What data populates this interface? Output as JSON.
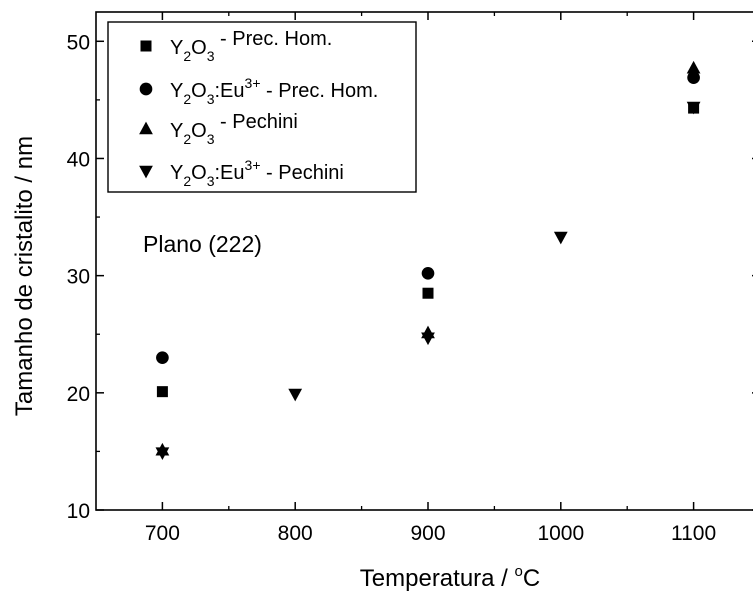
{
  "chart_data": {
    "type": "scatter",
    "xlabel_main": "Temperatura / ",
    "xlabel_sup": "o",
    "xlabel_tail": "C",
    "ylabel": "Tamanho de cristalito / nm",
    "xlim": [
      650,
      1150
    ],
    "ylim": [
      10,
      52.5
    ],
    "xticks": [
      700,
      800,
      900,
      1000,
      1100
    ],
    "yticks": [
      10,
      20,
      30,
      40,
      50
    ],
    "annotation": "Plano (222)",
    "legend_position": "top-left",
    "grid": false,
    "series": [
      {
        "marker": "square",
        "legend": {
          "base": "Y",
          "sub1": "2",
          "mid": "O",
          "sub2": "3",
          "dopant": "",
          "sup": "",
          "suffix": " - Prec. Hom."
        },
        "points": [
          [
            700,
            20.1
          ],
          [
            900,
            28.5
          ],
          [
            1100,
            44.3
          ]
        ]
      },
      {
        "marker": "circle",
        "legend": {
          "base": "Y",
          "sub1": "2",
          "mid": "O",
          "sub2": "3",
          "dopant": ":Eu",
          "sup": "3+",
          "suffix": " - Prec. Hom."
        },
        "points": [
          [
            700,
            23.0
          ],
          [
            900,
            30.2
          ],
          [
            1100,
            46.9
          ]
        ]
      },
      {
        "marker": "triangle-up",
        "legend": {
          "base": "Y",
          "sub1": "2",
          "mid": "O",
          "sub2": "3",
          "dopant": "",
          "sup": "",
          "suffix": " - Pechini"
        },
        "points": [
          [
            700,
            15.1
          ],
          [
            900,
            25.1
          ],
          [
            1100,
            47.7
          ]
        ]
      },
      {
        "marker": "triangle-down",
        "legend": {
          "base": "Y",
          "sub1": "2",
          "mid": "O",
          "sub2": "3",
          "dopant": ":Eu",
          "sup": "3+",
          "suffix": " - Pechini"
        },
        "points": [
          [
            700,
            14.9
          ],
          [
            800,
            19.9
          ],
          [
            900,
            24.7
          ],
          [
            1000,
            33.3
          ],
          [
            1100,
            44.4
          ]
        ]
      }
    ]
  }
}
